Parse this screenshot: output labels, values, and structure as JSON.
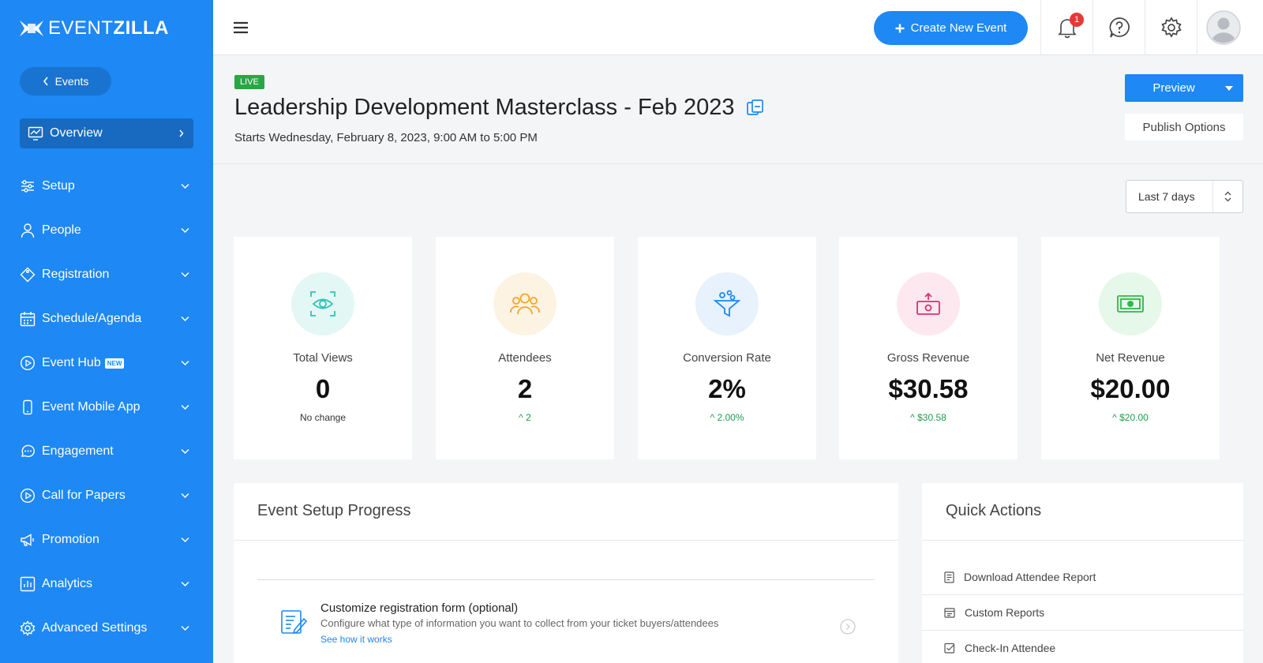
{
  "brand": {
    "name_light": "EVENT",
    "name_bold": "ZILLA"
  },
  "sidebar": {
    "back_label": "Events",
    "items": [
      {
        "label": "Overview",
        "icon": "chart-icon"
      },
      {
        "label": "Setup",
        "icon": "sliders-icon"
      },
      {
        "label": "People",
        "icon": "person-icon"
      },
      {
        "label": "Registration",
        "icon": "tag-icon"
      },
      {
        "label": "Schedule/Agenda",
        "icon": "calendar-icon"
      },
      {
        "label": "Event Hub",
        "icon": "play-icon",
        "badge": "NEW"
      },
      {
        "label": "Event Mobile App",
        "icon": "phone-icon"
      },
      {
        "label": "Engagement",
        "icon": "chat-icon"
      },
      {
        "label": "Call for Papers",
        "icon": "play-icon"
      },
      {
        "label": "Promotion",
        "icon": "megaphone-icon"
      },
      {
        "label": "Analytics",
        "icon": "bar-chart-icon"
      },
      {
        "label": "Advanced Settings",
        "icon": "gear-icon"
      }
    ]
  },
  "topbar": {
    "create_label": "Create New Event",
    "notification_count": "1"
  },
  "event": {
    "status": "LIVE",
    "title": "Leadership Development Masterclass - Feb 2023",
    "date_text": "Starts Wednesday, February 8, 2023, 9:00 AM to 5:00 PM",
    "preview_label": "Preview",
    "publish_label": "Publish Options"
  },
  "range": {
    "selected": "Last 7 days"
  },
  "stats": [
    {
      "label": "Total Views",
      "value": "0",
      "change": "No change",
      "icon": "eye-scan-icon",
      "color": "#2ec4b6"
    },
    {
      "label": "Attendees",
      "value": "2",
      "change": "2",
      "icon": "group-icon",
      "color": "#f5a623"
    },
    {
      "label": "Conversion Rate",
      "value": "2%",
      "change": "2.00%",
      "icon": "funnel-icon",
      "color": "#1e88f5"
    },
    {
      "label": "Gross Revenue",
      "value": "$30.58",
      "change": "$30.58",
      "icon": "money-box-icon",
      "color": "#d6336c"
    },
    {
      "label": "Net Revenue",
      "value": "$20.00",
      "change": "$20.00",
      "icon": "banknote-icon",
      "color": "#2fb84a"
    }
  ],
  "setup_progress": {
    "title": "Event Setup Progress",
    "task": {
      "title": "Customize registration form (optional)",
      "description": "Configure what type of information you want to collect from your ticket buyers/attendees",
      "link": "See how it works"
    }
  },
  "quick_actions": {
    "title": "Quick Actions",
    "items": [
      "Download Attendee Report",
      "Custom Reports",
      "Check-In Attendee"
    ]
  }
}
